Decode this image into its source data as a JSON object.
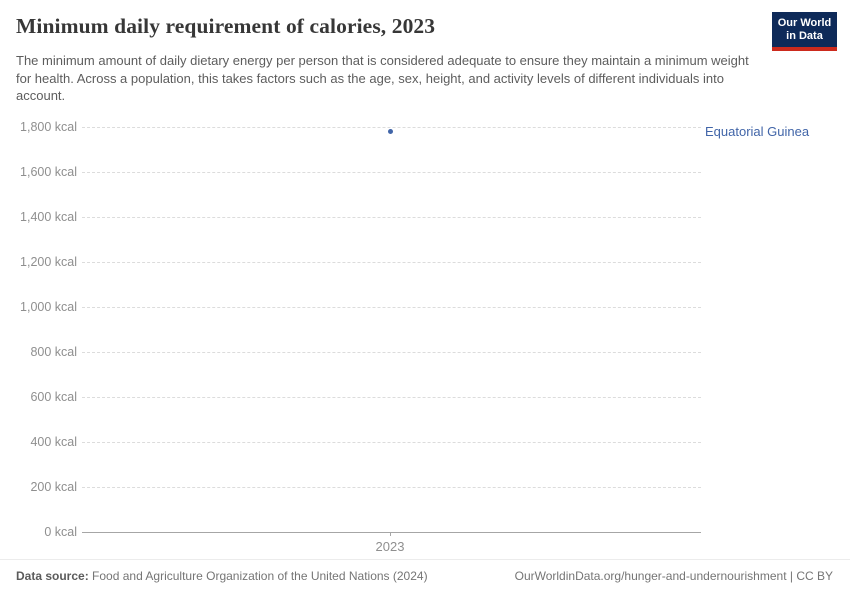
{
  "header": {
    "title": "Minimum daily requirement of calories, 2023",
    "logo_line1": "Our World",
    "logo_line2": "in Data"
  },
  "subtitle": "The minimum amount of daily dietary energy per person that is considered adequate to ensure they maintain a minimum weight for health. Across a population, this takes factors such as the age, sex, height, and activity levels of different individuals into account.",
  "chart_data": {
    "type": "scatter",
    "title": "Minimum daily requirement of calories, 2023",
    "x": [
      "2023"
    ],
    "series": [
      {
        "name": "Equatorial Guinea",
        "values": [
          1780
        ]
      }
    ],
    "entity_label": "Equatorial Guinea",
    "ylabel": "kcal",
    "ylim": [
      0,
      1800
    ],
    "ytick_step": 200,
    "ytick_labels": [
      "0 kcal",
      "200 kcal",
      "400 kcal",
      "600 kcal",
      "800 kcal",
      "1,000 kcal",
      "1,200 kcal",
      "1,400 kcal",
      "1,600 kcal",
      "1,800 kcal"
    ],
    "xtick_labels": [
      "2023"
    ],
    "grid": "horizontal dashed gridlines, solid zero axis, legend as inline entity label on right",
    "point_color": "#4165a8",
    "entity_label_color": "#4165a8"
  },
  "footer": {
    "datasource_label": "Data source:",
    "datasource_value": " Food and Agriculture Organization of the United Nations (2024)",
    "link": "OurWorldinData.org/hunger-and-undernourishment | CC BY"
  },
  "colors": {
    "accent_blue": "#4165a8",
    "logo_navy": "#0e2a59",
    "logo_red": "#cc2a1d",
    "gridline": "#dcdcdc",
    "axis": "#a6a6a6",
    "tick_text": "#8f8f8f"
  }
}
